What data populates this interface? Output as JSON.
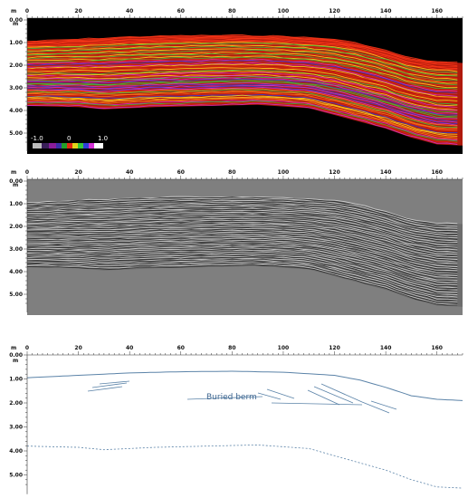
{
  "panels": [
    {
      "id": "amplitude",
      "x_unit": "m",
      "y_unit": "m",
      "x_ticks": [
        "0",
        "20",
        "40",
        "60",
        "80",
        "100",
        "120",
        "140",
        "160"
      ],
      "y_ticks": [
        "0.00",
        "1.00",
        "2.00",
        "3.00",
        "4.00",
        "5.00"
      ],
      "colorbar": {
        "min_label": "-1.0",
        "mid_label": "0",
        "max_label": "1.0"
      }
    },
    {
      "id": "greyscale",
      "x_unit": "m",
      "y_unit": "m",
      "x_ticks": [
        "0",
        "20",
        "40",
        "60",
        "80",
        "100",
        "120",
        "140",
        "160"
      ],
      "y_ticks": [
        "0.00",
        "1.00",
        "2.00",
        "3.00",
        "4.00",
        "5.00"
      ]
    },
    {
      "id": "interpretation",
      "x_unit": "m",
      "y_unit": "m",
      "x_ticks": [
        "0",
        "20",
        "40",
        "60",
        "80",
        "100",
        "120",
        "140",
        "160"
      ],
      "y_ticks": [
        "0.00",
        "1.00",
        "2.00",
        "3.00",
        "4.00",
        "5.00"
      ],
      "annotation": "Buried berm"
    }
  ],
  "colors": {
    "interpretation_line": "#5b83a8",
    "annotation_text": "#3f6791",
    "background_black": "#000000",
    "background_grey": "#7f7f7f"
  }
}
